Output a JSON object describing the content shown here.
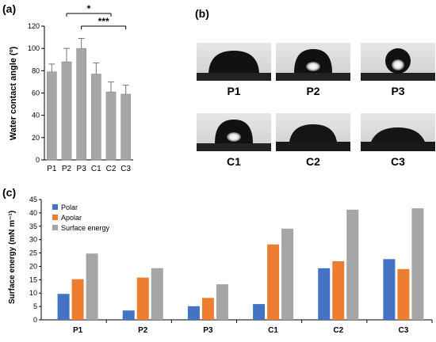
{
  "panels": {
    "a_label": "(a)",
    "b_label": "(b)",
    "c_label": "(c)"
  },
  "chart_data": [
    {
      "type": "bar",
      "panel": "(a)",
      "categories": [
        "P1",
        "P2",
        "P3",
        "C1",
        "C2",
        "C3"
      ],
      "values": [
        79,
        88,
        100,
        77,
        61,
        59
      ],
      "errors": [
        7,
        12,
        9,
        10,
        9,
        8
      ],
      "ylabel": "Water contact angle (º)",
      "ylim": [
        0,
        120
      ],
      "yticks": [
        0,
        20,
        40,
        60,
        80,
        100,
        120
      ],
      "bar_color": "#a6a6a6",
      "significance": [
        {
          "from": "P2",
          "to": "C2",
          "label": "*"
        },
        {
          "from": "P3",
          "to": "C3",
          "label": "***"
        }
      ]
    },
    {
      "type": "bar",
      "panel": "(c)",
      "categories": [
        "P1",
        "P2",
        "P3",
        "C1",
        "C2",
        "C3"
      ],
      "series": [
        {
          "name": "Polar",
          "color": "#4472c4",
          "values": [
            9.7,
            3.5,
            5.1,
            5.9,
            19.3,
            22.7
          ]
        },
        {
          "name": "Apolar",
          "color": "#ed7d31",
          "values": [
            15.2,
            15.8,
            8.2,
            28.2,
            21.9,
            19.0
          ]
        },
        {
          "name": "Surface energy",
          "color": "#a5a5a5",
          "values": [
            24.8,
            19.3,
            13.3,
            34.1,
            41.2,
            41.7
          ]
        }
      ],
      "ylabel": "Surface energy (mN m⁻¹)",
      "ylim": [
        0,
        45
      ],
      "yticks": [
        0,
        5,
        10,
        15,
        20,
        25,
        30,
        35,
        40,
        45
      ]
    }
  ],
  "droplet_images": [
    {
      "label": "P1",
      "shape": "wide-dark"
    },
    {
      "label": "P2",
      "shape": "dome-glare"
    },
    {
      "label": "P3",
      "shape": "sphere-glare"
    },
    {
      "label": "C1",
      "shape": "dome-glare"
    },
    {
      "label": "C2",
      "shape": "flat-dark"
    },
    {
      "label": "C3",
      "shape": "flat-rough"
    }
  ]
}
